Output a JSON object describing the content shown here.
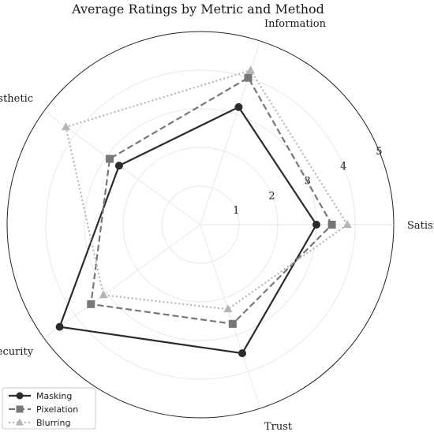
{
  "chart_data": {
    "type": "radar",
    "title": "Average Ratings by Metric and Method",
    "categories": [
      "Satisfaction",
      "Information",
      "Aesthetic",
      "Security",
      "Trust"
    ],
    "rlim": [
      0,
      5
    ],
    "r_ticks": [
      1,
      2,
      3,
      4,
      5
    ],
    "r_tick_labels": [
      "1",
      "2",
      "3",
      "4",
      "5"
    ],
    "grid": true,
    "legend_position": "lower-left",
    "series": [
      {
        "name": "Masking",
        "values": [
          3.0,
          3.2,
          2.6,
          4.5,
          3.5
        ],
        "color": "#2b2b2b",
        "dash": "solid",
        "marker": "circle"
      },
      {
        "name": "Pixelation",
        "values": [
          3.4,
          4.0,
          2.9,
          3.5,
          2.7
        ],
        "color": "#777777",
        "dash": "dashed",
        "marker": "square"
      },
      {
        "name": "Blurring",
        "values": [
          3.8,
          4.2,
          4.3,
          3.1,
          2.3
        ],
        "color": "#b5b5b5",
        "dash": "dotted",
        "marker": "triangle"
      }
    ]
  }
}
